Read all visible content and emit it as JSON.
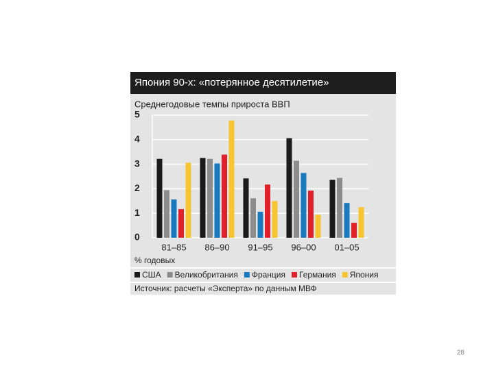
{
  "chart_data": {
    "type": "bar",
    "title": "Япония 90-х: «потерянное десятилетие»",
    "subtitle": "Среднегодовые темпы прироста ВВП",
    "y_unit": "% годовых",
    "source": "Источник: расчеты «Эксперта» по данным МВФ",
    "categories": [
      "81–85",
      "86–90",
      "91–95",
      "96–00",
      "01–05"
    ],
    "series": [
      {
        "name": "США",
        "color": "#1a1a1a",
        "values": [
          3.22,
          3.25,
          2.42,
          4.06,
          2.36
        ]
      },
      {
        "name": "Великобритания",
        "color": "#8c8c8c",
        "values": [
          1.94,
          3.22,
          1.61,
          3.14,
          2.44
        ]
      },
      {
        "name": "Франция",
        "color": "#1a7abf",
        "values": [
          1.56,
          3.03,
          1.06,
          2.64,
          1.42
        ]
      },
      {
        "name": "Германия",
        "color": "#e0202a",
        "values": [
          1.17,
          3.39,
          2.17,
          1.92,
          0.61
        ]
      },
      {
        "name": "Япония",
        "color": "#f7c531",
        "values": [
          3.06,
          4.78,
          1.5,
          0.94,
          1.25
        ]
      }
    ],
    "ylim": [
      0,
      5
    ],
    "yticks": [
      0,
      1,
      2,
      3,
      4,
      5
    ],
    "grid": true
  },
  "page_number": "28"
}
